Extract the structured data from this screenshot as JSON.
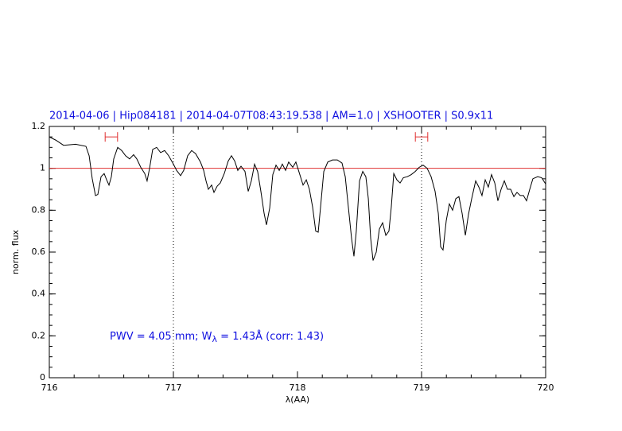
{
  "chart_data": {
    "type": "line",
    "title": "2014-04-06 | Hip084181 | 2014-04-07T08:43:19.538 | AM=1.0 | XSHOOTER | S0.9x11",
    "annotation": [
      "PWV = 4.05 mm; W",
      "λ",
      " = 1.43Å (corr: 1.43)"
    ],
    "xlabel": "λ(AA)",
    "ylabel": "norm. flux",
    "xlim": [
      716,
      720
    ],
    "ylim": [
      0,
      1.2
    ],
    "xticks": [
      716,
      717,
      718,
      719,
      720
    ],
    "yticks": [
      0,
      0.2,
      0.4,
      0.6,
      0.8,
      1,
      1.2
    ],
    "xminor": 0.2,
    "yminor": 0.05,
    "dotted_x": [
      717,
      719
    ],
    "reference_line": {
      "value": 1,
      "color": "#e03030"
    },
    "continuum_windows": {
      "color": "#e03030",
      "y": 1.15,
      "ranges": [
        [
          716.45,
          716.55
        ],
        [
          718.95,
          719.05
        ]
      ]
    },
    "series": [
      {
        "color": "#000000",
        "x": [
          716.0,
          716.051,
          716.115,
          716.212,
          716.295,
          716.321,
          716.346,
          716.372,
          716.391,
          716.417,
          716.442,
          716.462,
          716.481,
          716.5,
          716.519,
          716.551,
          716.583,
          716.615,
          716.647,
          716.679,
          716.705,
          716.737,
          716.769,
          716.788,
          716.808,
          716.833,
          716.865,
          716.897,
          716.929,
          716.962,
          717.0,
          717.026,
          717.058,
          717.083,
          717.115,
          717.147,
          717.179,
          717.218,
          717.244,
          717.263,
          717.282,
          717.308,
          717.327,
          717.353,
          717.378,
          717.41,
          717.442,
          717.468,
          717.494,
          717.519,
          717.545,
          717.577,
          717.603,
          717.628,
          717.654,
          717.679,
          717.705,
          717.731,
          717.75,
          717.776,
          717.801,
          717.827,
          717.853,
          717.878,
          717.904,
          717.929,
          717.962,
          717.987,
          718.019,
          718.045,
          718.071,
          718.096,
          718.122,
          718.147,
          718.167,
          718.186,
          718.212,
          718.244,
          718.282,
          718.321,
          718.359,
          718.385,
          718.41,
          718.436,
          718.455,
          718.474,
          718.5,
          718.526,
          718.551,
          718.571,
          718.59,
          718.609,
          718.635,
          718.66,
          718.686,
          718.712,
          718.737,
          718.756,
          718.776,
          718.801,
          718.827,
          718.853,
          718.885,
          718.917,
          718.949,
          718.981,
          719.013,
          719.045,
          719.077,
          719.109,
          719.135,
          719.154,
          719.173,
          719.199,
          719.224,
          719.25,
          719.276,
          719.301,
          719.327,
          719.353,
          719.378,
          719.404,
          719.436,
          719.462,
          719.487,
          719.513,
          719.538,
          719.564,
          719.59,
          719.615,
          719.641,
          719.667,
          719.692,
          719.718,
          719.744,
          719.769,
          719.795,
          719.821,
          719.846,
          719.872,
          719.897,
          719.936,
          719.968,
          720.0
        ],
        "values": [
          1.15,
          1.135,
          1.11,
          1.115,
          1.105,
          1.06,
          0.95,
          0.87,
          0.875,
          0.96,
          0.975,
          0.945,
          0.92,
          0.96,
          1.045,
          1.1,
          1.085,
          1.06,
          1.045,
          1.065,
          1.045,
          1.005,
          0.975,
          0.94,
          1.0,
          1.09,
          1.1,
          1.075,
          1.085,
          1.06,
          1.02,
          0.99,
          0.965,
          0.99,
          1.06,
          1.085,
          1.07,
          1.03,
          0.99,
          0.94,
          0.9,
          0.92,
          0.885,
          0.915,
          0.93,
          0.975,
          1.035,
          1.06,
          1.035,
          0.99,
          1.01,
          0.985,
          0.89,
          0.94,
          1.02,
          0.985,
          0.89,
          0.785,
          0.73,
          0.81,
          0.97,
          1.015,
          0.99,
          1.02,
          0.99,
          1.03,
          1.005,
          1.03,
          0.97,
          0.92,
          0.945,
          0.9,
          0.815,
          0.7,
          0.695,
          0.815,
          0.985,
          1.03,
          1.04,
          1.04,
          1.025,
          0.96,
          0.815,
          0.665,
          0.58,
          0.7,
          0.94,
          0.985,
          0.96,
          0.855,
          0.665,
          0.56,
          0.6,
          0.71,
          0.74,
          0.68,
          0.7,
          0.815,
          0.975,
          0.945,
          0.93,
          0.955,
          0.96,
          0.97,
          0.985,
          1.005,
          1.015,
          1.0,
          0.96,
          0.89,
          0.785,
          0.625,
          0.61,
          0.75,
          0.83,
          0.8,
          0.855,
          0.865,
          0.785,
          0.68,
          0.78,
          0.855,
          0.94,
          0.91,
          0.87,
          0.945,
          0.91,
          0.97,
          0.93,
          0.845,
          0.9,
          0.94,
          0.9,
          0.9,
          0.865,
          0.885,
          0.87,
          0.87,
          0.845,
          0.9,
          0.95,
          0.96,
          0.955,
          0.925
        ]
      }
    ]
  }
}
